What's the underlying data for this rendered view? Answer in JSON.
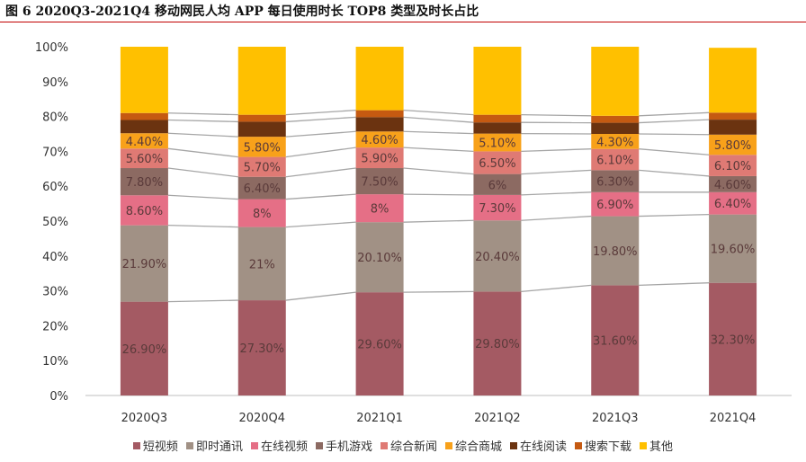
{
  "figure_title": "图 6 2020Q3-2021Q4 移动网民人均 APP 每日使用时长 TOP8 类型及时长占比",
  "chart_data": {
    "type": "bar",
    "stacked": true,
    "categories": [
      "2020Q3",
      "2020Q4",
      "2021Q1",
      "2021Q2",
      "2021Q3",
      "2021Q4"
    ],
    "ylim": [
      0,
      100
    ],
    "yticks": [
      "0%",
      "10%",
      "20%",
      "30%",
      "40%",
      "50%",
      "60%",
      "70%",
      "80%",
      "90%",
      "100%"
    ],
    "grid": false,
    "legend_position": "bottom",
    "series": [
      {
        "name": "短视频",
        "color": "#a45a63",
        "values": [
          26.9,
          27.3,
          29.6,
          29.8,
          31.6,
          32.3
        ],
        "labels": [
          "26.90%",
          "27.30%",
          "29.60%",
          "29.80%",
          "31.60%",
          "32.30%"
        ]
      },
      {
        "name": "即时通讯",
        "color": "#a19185",
        "values": [
          21.9,
          21,
          20.1,
          20.4,
          19.8,
          19.6
        ],
        "labels": [
          "21.90%",
          "21%",
          "20.10%",
          "20.40%",
          "19.80%",
          "19.60%"
        ]
      },
      {
        "name": "在线视频",
        "color": "#e56f86",
        "values": [
          8.6,
          8,
          8,
          7.3,
          6.9,
          6.4
        ],
        "labels": [
          "8.60%",
          "8%",
          "8%",
          "7.30%",
          "6.90%",
          "6.40%"
        ]
      },
      {
        "name": "手机游戏",
        "color": "#8c6a62",
        "values": [
          7.8,
          6.4,
          7.5,
          6,
          6.3,
          4.6
        ],
        "labels": [
          "7.80%",
          "6.40%",
          "7.50%",
          "6%",
          "6.30%",
          "4.60%"
        ]
      },
      {
        "name": "综合新闻",
        "color": "#df7a74",
        "values": [
          5.6,
          5.7,
          5.9,
          6.5,
          6.1,
          6.1
        ],
        "labels": [
          "5.60%",
          "5.70%",
          "5.90%",
          "6.50%",
          "6.10%",
          "6.10%"
        ]
      },
      {
        "name": "综合商城",
        "color": "#f8a11a",
        "values": [
          4.4,
          5.8,
          4.6,
          5.1,
          4.3,
          5.8
        ],
        "labels": [
          "4.40%",
          "5.80%",
          "4.60%",
          "5.10%",
          "4.30%",
          "5.80%"
        ]
      },
      {
        "name": "在线阅读",
        "color": "#6b3310",
        "values": [
          3.8,
          4.3,
          4.1,
          3.2,
          3.2,
          4.3
        ],
        "labels": [
          "",
          "",
          "",
          "",
          "",
          ""
        ]
      },
      {
        "name": "搜索下载",
        "color": "#c55a11",
        "values": [
          2.0,
          2.0,
          2.0,
          2.2,
          2.0,
          2.0
        ],
        "labels": [
          "",
          "",
          "",
          "",
          "",
          ""
        ]
      },
      {
        "name": "其他",
        "color": "#ffc000",
        "values": [
          19.0,
          19.5,
          18.2,
          19.5,
          19.8,
          18.6
        ],
        "labels": [
          "",
          "",
          "",
          "",
          "",
          ""
        ]
      }
    ]
  }
}
